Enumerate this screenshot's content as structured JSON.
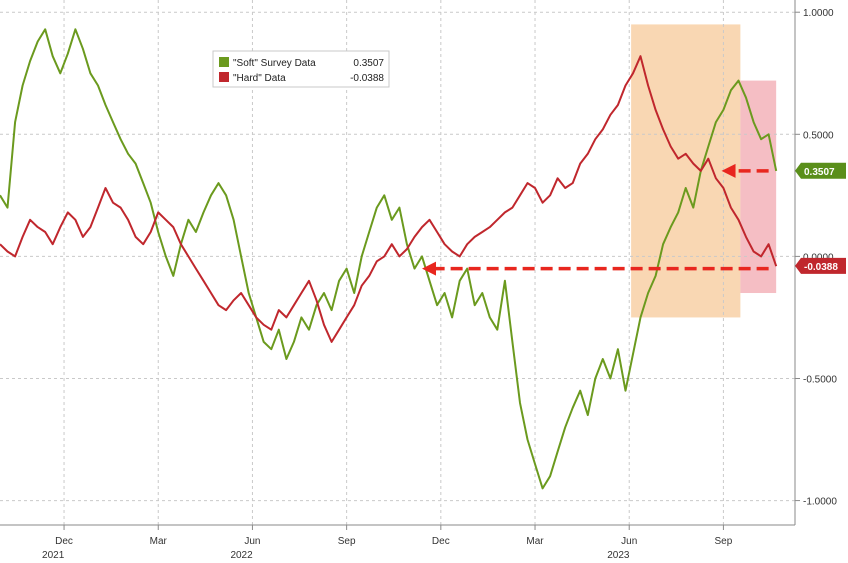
{
  "chart_data": {
    "type": "line",
    "title": "",
    "xlabel": "",
    "ylabel": "",
    "ylim": [
      -1.1,
      1.05
    ],
    "y_ticks": [
      "1.0000",
      "0.5000",
      "0.0000",
      "-0.5000",
      "-1.0000"
    ],
    "y_tick_values": [
      1.0,
      0.5,
      0.0,
      -0.5,
      -1.0
    ],
    "x_month_ticks": [
      {
        "label": "Dec",
        "t": 2021.92
      },
      {
        "label": "Mar",
        "t": 2022.17
      },
      {
        "label": "Jun",
        "t": 2022.42
      },
      {
        "label": "Sep",
        "t": 2022.67
      },
      {
        "label": "Dec",
        "t": 2022.92
      },
      {
        "label": "Mar",
        "t": 2023.17
      },
      {
        "label": "Jun",
        "t": 2023.42
      },
      {
        "label": "Sep",
        "t": 2023.67
      }
    ],
    "x_year_ticks": [
      {
        "label": "2021",
        "t": 2021.92
      },
      {
        "label": "2022",
        "t": 2022.42
      },
      {
        "label": "2023",
        "t": 2023.42
      }
    ],
    "xlim": [
      2021.75,
      2023.86
    ],
    "grid": true,
    "legend_position": "top-center",
    "series": [
      {
        "name": "\"Soft\" Survey Data",
        "last_value": "0.3507",
        "color": "#6b9a1e",
        "x": [
          2021.75,
          2021.77,
          2021.79,
          2021.81,
          2021.83,
          2021.85,
          2021.87,
          2021.89,
          2021.91,
          2021.93,
          2021.95,
          2021.97,
          2021.99,
          2022.01,
          2022.03,
          2022.05,
          2022.07,
          2022.09,
          2022.11,
          2022.13,
          2022.15,
          2022.17,
          2022.19,
          2022.21,
          2022.23,
          2022.25,
          2022.27,
          2022.29,
          2022.31,
          2022.33,
          2022.35,
          2022.37,
          2022.39,
          2022.41,
          2022.43,
          2022.45,
          2022.47,
          2022.49,
          2022.51,
          2022.53,
          2022.55,
          2022.57,
          2022.59,
          2022.61,
          2022.63,
          2022.65,
          2022.67,
          2022.69,
          2022.71,
          2022.73,
          2022.75,
          2022.77,
          2022.79,
          2022.81,
          2022.83,
          2022.85,
          2022.87,
          2022.89,
          2022.91,
          2022.93,
          2022.95,
          2022.97,
          2022.99,
          2023.01,
          2023.03,
          2023.05,
          2023.07,
          2023.09,
          2023.11,
          2023.13,
          2023.15,
          2023.17,
          2023.19,
          2023.21,
          2023.23,
          2023.25,
          2023.27,
          2023.29,
          2023.31,
          2023.33,
          2023.35,
          2023.37,
          2023.39,
          2023.41,
          2023.43,
          2023.45,
          2023.47,
          2023.49,
          2023.51,
          2023.53,
          2023.55,
          2023.57,
          2023.59,
          2023.61,
          2023.63,
          2023.65,
          2023.67,
          2023.69,
          2023.71,
          2023.73,
          2023.75,
          2023.77,
          2023.79,
          2023.81
        ],
        "y": [
          0.25,
          0.2,
          0.55,
          0.7,
          0.8,
          0.88,
          0.93,
          0.82,
          0.75,
          0.83,
          0.93,
          0.85,
          0.75,
          0.7,
          0.62,
          0.55,
          0.48,
          0.42,
          0.38,
          0.3,
          0.22,
          0.1,
          0.0,
          -0.08,
          0.05,
          0.15,
          0.1,
          0.18,
          0.25,
          0.3,
          0.25,
          0.15,
          0.0,
          -0.15,
          -0.25,
          -0.35,
          -0.38,
          -0.3,
          -0.42,
          -0.35,
          -0.25,
          -0.3,
          -0.2,
          -0.15,
          -0.22,
          -0.1,
          -0.05,
          -0.15,
          0.0,
          0.1,
          0.2,
          0.25,
          0.15,
          0.2,
          0.05,
          -0.05,
          0.0,
          -0.1,
          -0.2,
          -0.15,
          -0.25,
          -0.1,
          -0.05,
          -0.2,
          -0.15,
          -0.25,
          -0.3,
          -0.1,
          -0.35,
          -0.6,
          -0.75,
          -0.85,
          -0.95,
          -0.9,
          -0.8,
          -0.7,
          -0.62,
          -0.55,
          -0.65,
          -0.5,
          -0.42,
          -0.5,
          -0.38,
          -0.55,
          -0.4,
          -0.25,
          -0.15,
          -0.08,
          0.05,
          0.12,
          0.18,
          0.28,
          0.2,
          0.35,
          0.45,
          0.55,
          0.6,
          0.68,
          0.72,
          0.65,
          0.55,
          0.48,
          0.5,
          0.35
        ]
      },
      {
        "name": "\"Hard\" Data",
        "last_value": "-0.0388",
        "color": "#c0272d",
        "x": [
          2021.75,
          2021.77,
          2021.79,
          2021.81,
          2021.83,
          2021.85,
          2021.87,
          2021.89,
          2021.91,
          2021.93,
          2021.95,
          2021.97,
          2021.99,
          2022.01,
          2022.03,
          2022.05,
          2022.07,
          2022.09,
          2022.11,
          2022.13,
          2022.15,
          2022.17,
          2022.19,
          2022.21,
          2022.23,
          2022.25,
          2022.27,
          2022.29,
          2022.31,
          2022.33,
          2022.35,
          2022.37,
          2022.39,
          2022.41,
          2022.43,
          2022.45,
          2022.47,
          2022.49,
          2022.51,
          2022.53,
          2022.55,
          2022.57,
          2022.59,
          2022.61,
          2022.63,
          2022.65,
          2022.67,
          2022.69,
          2022.71,
          2022.73,
          2022.75,
          2022.77,
          2022.79,
          2022.81,
          2022.83,
          2022.85,
          2022.87,
          2022.89,
          2022.91,
          2022.93,
          2022.95,
          2022.97,
          2022.99,
          2023.01,
          2023.03,
          2023.05,
          2023.07,
          2023.09,
          2023.11,
          2023.13,
          2023.15,
          2023.17,
          2023.19,
          2023.21,
          2023.23,
          2023.25,
          2023.27,
          2023.29,
          2023.31,
          2023.33,
          2023.35,
          2023.37,
          2023.39,
          2023.41,
          2023.43,
          2023.45,
          2023.47,
          2023.49,
          2023.51,
          2023.53,
          2023.55,
          2023.57,
          2023.59,
          2023.61,
          2023.63,
          2023.65,
          2023.67,
          2023.69,
          2023.71,
          2023.73,
          2023.75,
          2023.77,
          2023.79,
          2023.81
        ],
        "y": [
          0.05,
          0.02,
          0.0,
          0.08,
          0.15,
          0.12,
          0.1,
          0.05,
          0.12,
          0.18,
          0.15,
          0.08,
          0.12,
          0.2,
          0.28,
          0.22,
          0.2,
          0.15,
          0.08,
          0.05,
          0.1,
          0.18,
          0.15,
          0.12,
          0.05,
          0.0,
          -0.05,
          -0.1,
          -0.15,
          -0.2,
          -0.22,
          -0.18,
          -0.15,
          -0.2,
          -0.25,
          -0.28,
          -0.3,
          -0.22,
          -0.25,
          -0.2,
          -0.15,
          -0.1,
          -0.18,
          -0.28,
          -0.35,
          -0.3,
          -0.25,
          -0.2,
          -0.12,
          -0.08,
          -0.02,
          0.0,
          0.05,
          0.0,
          0.03,
          0.08,
          0.12,
          0.15,
          0.1,
          0.05,
          0.02,
          0.0,
          0.05,
          0.08,
          0.1,
          0.12,
          0.15,
          0.18,
          0.2,
          0.25,
          0.3,
          0.28,
          0.22,
          0.25,
          0.32,
          0.28,
          0.3,
          0.38,
          0.42,
          0.48,
          0.52,
          0.58,
          0.62,
          0.7,
          0.75,
          0.82,
          0.7,
          0.6,
          0.52,
          0.45,
          0.4,
          0.42,
          0.38,
          0.35,
          0.4,
          0.32,
          0.28,
          0.2,
          0.15,
          0.08,
          0.02,
          0.0,
          0.05,
          -0.04
        ]
      }
    ],
    "annotations": {
      "shade_orange": {
        "x_start": 2023.425,
        "x_end": 2023.715,
        "y_start": -0.25,
        "y_end": 0.95,
        "color": "#f7c99a"
      },
      "shade_pink": {
        "x_start": 2023.715,
        "x_end": 2023.81,
        "y_start": -0.15,
        "y_end": 0.72,
        "color": "#f2a8b0"
      },
      "arrow_soft_level": {
        "x_start": 2023.79,
        "x_end": 2023.665,
        "y": 0.35,
        "color": "#e8271f"
      },
      "arrow_hard_level": {
        "x_start": 2023.79,
        "x_end": 2022.87,
        "y": -0.05,
        "color": "#e8271f"
      }
    },
    "value_labels": {
      "soft": {
        "text": "0.3507",
        "y": 0.3507,
        "color": "#5a8f1a"
      },
      "hard": {
        "text": "-0.0388",
        "y": -0.0388,
        "color": "#c0272d"
      }
    }
  }
}
